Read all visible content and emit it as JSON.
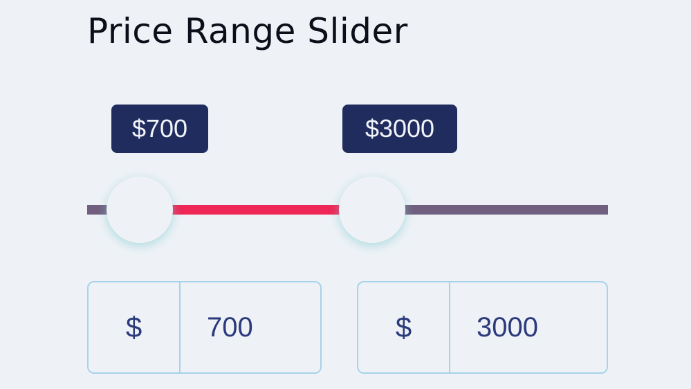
{
  "title": "Price Range Slider",
  "slider": {
    "min_value": 700,
    "max_value": 3000,
    "min_tooltip": "$700",
    "max_tooltip": "$3000",
    "colors": {
      "track": "#715f7f",
      "range": "#ee2756",
      "tooltip": "#212c5e"
    }
  },
  "inputs": {
    "min": {
      "currency": "$",
      "value": "700"
    },
    "max": {
      "currency": "$",
      "value": "3000"
    }
  }
}
